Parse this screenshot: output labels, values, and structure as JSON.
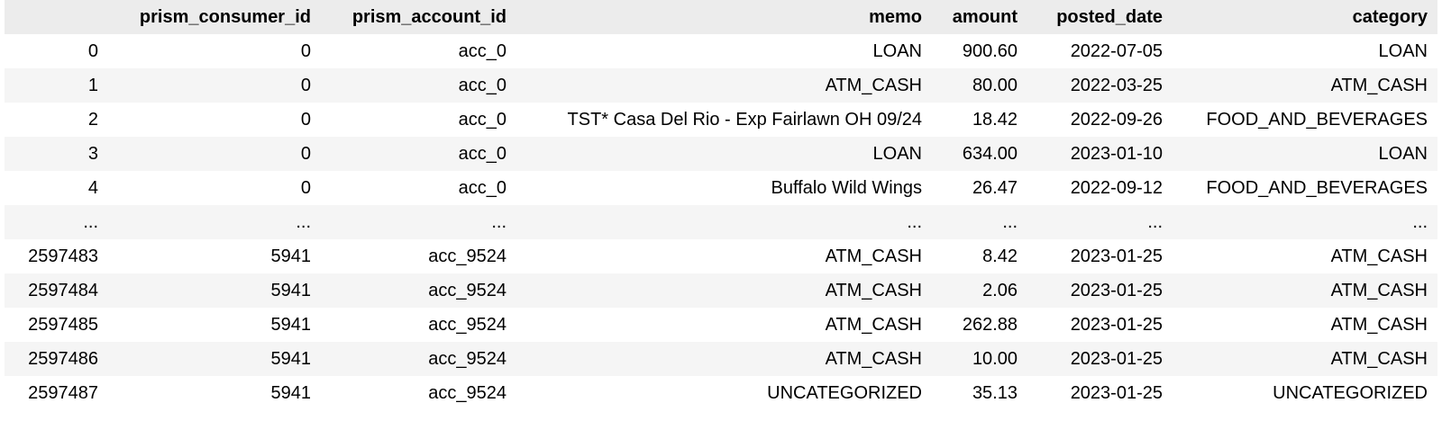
{
  "dataframe": {
    "columns": [
      "",
      "prism_consumer_id",
      "prism_account_id",
      "memo",
      "amount",
      "posted_date",
      "category"
    ],
    "rows": [
      [
        "0",
        "0",
        "acc_0",
        "LOAN",
        "900.60",
        "2022-07-05",
        "LOAN"
      ],
      [
        "1",
        "0",
        "acc_0",
        "ATM_CASH",
        "80.00",
        "2022-03-25",
        "ATM_CASH"
      ],
      [
        "2",
        "0",
        "acc_0",
        "TST* Casa Del Rio - Exp Fairlawn OH 09/24",
        "18.42",
        "2022-09-26",
        "FOOD_AND_BEVERAGES"
      ],
      [
        "3",
        "0",
        "acc_0",
        "LOAN",
        "634.00",
        "2023-01-10",
        "LOAN"
      ],
      [
        "4",
        "0",
        "acc_0",
        "Buffalo Wild Wings",
        "26.47",
        "2022-09-12",
        "FOOD_AND_BEVERAGES"
      ],
      [
        "...",
        "...",
        "...",
        "...",
        "...",
        "...",
        "..."
      ],
      [
        "2597483",
        "5941",
        "acc_9524",
        "ATM_CASH",
        "8.42",
        "2023-01-25",
        "ATM_CASH"
      ],
      [
        "2597484",
        "5941",
        "acc_9524",
        "ATM_CASH",
        "2.06",
        "2023-01-25",
        "ATM_CASH"
      ],
      [
        "2597485",
        "5941",
        "acc_9524",
        "ATM_CASH",
        "262.88",
        "2023-01-25",
        "ATM_CASH"
      ],
      [
        "2597486",
        "5941",
        "acc_9524",
        "ATM_CASH",
        "10.00",
        "2023-01-25",
        "ATM_CASH"
      ],
      [
        "2597487",
        "5941",
        "acc_9524",
        "UNCATEGORIZED",
        "35.13",
        "2023-01-25",
        "UNCATEGORIZED"
      ]
    ]
  }
}
